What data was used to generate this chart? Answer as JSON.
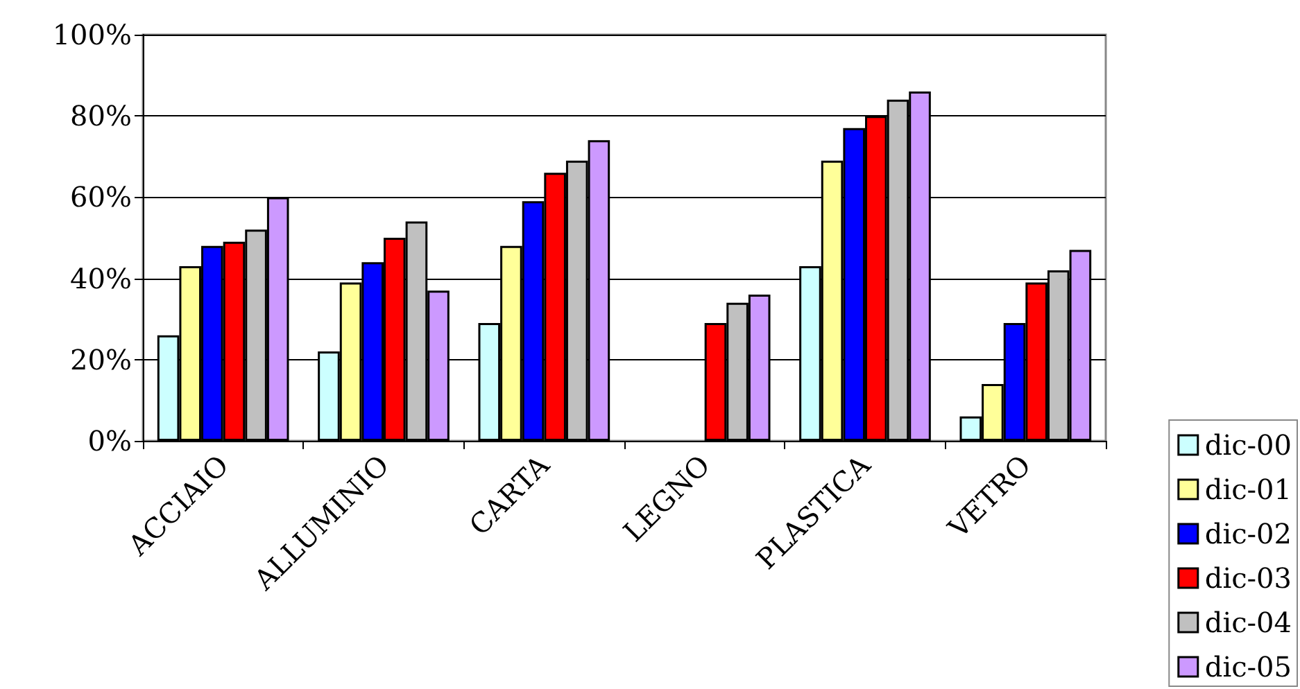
{
  "chart_data": {
    "type": "bar",
    "categories": [
      "ACCIAIO",
      "ALLUMINIO",
      "CARTA",
      "LEGNO",
      "PLASTICA",
      "VETRO"
    ],
    "series": [
      {
        "name": "dic-00",
        "color": "#ccffff",
        "values": [
          26,
          22,
          29,
          null,
          43,
          6
        ]
      },
      {
        "name": "dic-01",
        "color": "#ffff99",
        "values": [
          43,
          39,
          48,
          null,
          69,
          14
        ]
      },
      {
        "name": "dic-02",
        "color": "#0000ff",
        "values": [
          48,
          44,
          59,
          null,
          77,
          29
        ]
      },
      {
        "name": "dic-03",
        "color": "#ff0000",
        "values": [
          49,
          50,
          66,
          29,
          80,
          39
        ]
      },
      {
        "name": "dic-04",
        "color": "#c0c0c0",
        "values": [
          52,
          54,
          69,
          34,
          84,
          42
        ]
      },
      {
        "name": "dic-05",
        "color": "#cc99ff",
        "values": [
          60,
          37,
          74,
          36,
          86,
          47
        ]
      }
    ],
    "ylim": [
      0,
      100
    ],
    "yticks": [
      {
        "value": 0,
        "label": "0%"
      },
      {
        "value": 20,
        "label": "20%"
      },
      {
        "value": 40,
        "label": "40%"
      },
      {
        "value": 60,
        "label": "60%"
      },
      {
        "value": 80,
        "label": "80%"
      },
      {
        "value": 100,
        "label": "100%"
      }
    ],
    "grid": "y",
    "legend": "bottom right"
  }
}
